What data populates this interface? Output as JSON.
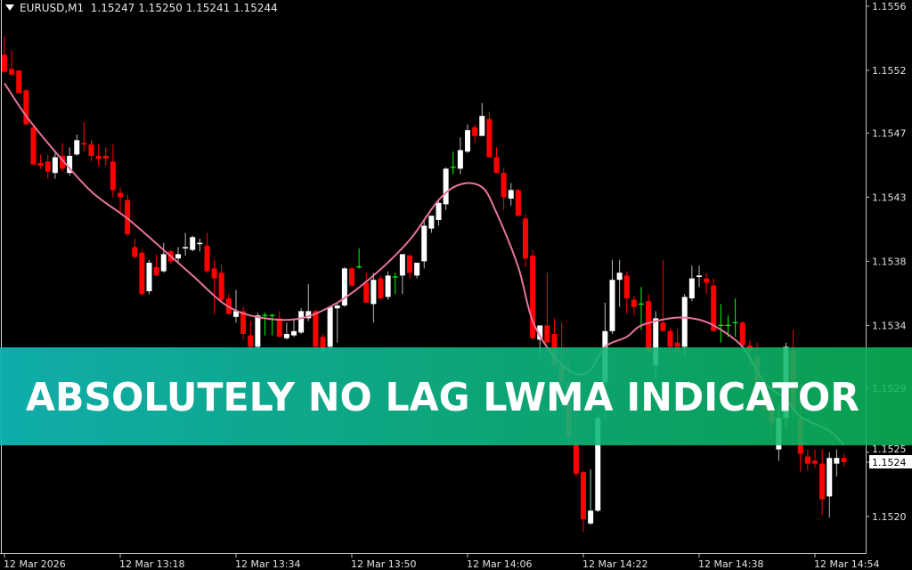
{
  "header": {
    "symbol_timeframe": "EURUSD,M1",
    "quote": "1.15247 1.15250 1.15241 1.15244",
    "menu_icon": "triangle-down-icon"
  },
  "banner": {
    "text": "ABSOLUTELY NO LAG LWMA INDICATOR",
    "gradient_left": "#11b5b4",
    "gradient_right": "#0bb85a"
  },
  "colors": {
    "background": "#000000",
    "bull": "#ffffff",
    "bear": "#ff0000",
    "doji": "#00ff00",
    "lwma": "#e8739c",
    "axis": "#c0c0c0"
  },
  "chart_data": {
    "type": "candlestick",
    "series_fields": [
      "time",
      "open",
      "high",
      "low",
      "close"
    ],
    "current_price_label": "1.1524",
    "y_ticks": [
      {
        "label": "1.1556",
        "value": 1.15564
      },
      {
        "label": "1.1552",
        "value": 1.15519
      },
      {
        "label": "1.1547",
        "value": 1.15475
      },
      {
        "label": "1.1543",
        "value": 1.1543
      },
      {
        "label": "1.1538",
        "value": 1.15385
      },
      {
        "label": "1.1534",
        "value": 1.1534
      },
      {
        "label": "1.1529",
        "value": 1.15296
      },
      {
        "label": "1.1525",
        "value": 1.15251
      },
      {
        "label": "1.1520",
        "value": 1.15206
      }
    ],
    "x_ticks": [
      {
        "label": "12 Mar 2026",
        "time": "13:02"
      },
      {
        "label": "12 Mar 13:18",
        "time": "13:18"
      },
      {
        "label": "12 Mar 13:34",
        "time": "13:34"
      },
      {
        "label": "12 Mar 13:50",
        "time": "13:50"
      },
      {
        "label": "12 Mar 14:06",
        "time": "14:06"
      },
      {
        "label": "12 Mar 14:22",
        "time": "14:22"
      },
      {
        "label": "12 Mar 14:38",
        "time": "14:38"
      },
      {
        "label": "12 Mar 14:54",
        "time": "14:54"
      }
    ],
    "candles": [
      [
        "13:02",
        1.1553,
        1.15543,
        1.15517,
        1.15518
      ],
      [
        "13:03",
        1.1552,
        1.15533,
        1.15515,
        1.15516
      ],
      [
        "13:04",
        1.15519,
        1.15519,
        1.15503,
        1.15503
      ],
      [
        "13:05",
        1.15505,
        1.15506,
        1.15481,
        1.15481
      ],
      [
        "13:06",
        1.15479,
        1.1548,
        1.15453,
        1.15453
      ],
      [
        "13:07",
        1.15454,
        1.1546,
        1.1545,
        1.15452
      ],
      [
        "13:08",
        1.15455,
        1.1546,
        1.15443,
        1.15448
      ],
      [
        "13:09",
        1.15447,
        1.15462,
        1.15443,
        1.15458
      ],
      [
        "13:10",
        1.15459,
        1.15468,
        1.15448,
        1.1545
      ],
      [
        "13:11",
        1.15447,
        1.15465,
        1.15445,
        1.15459
      ],
      [
        "13:12",
        1.1546,
        1.15474,
        1.15459,
        1.1547
      ],
      [
        "13:13",
        1.15468,
        1.15483,
        1.15462,
        1.15467
      ],
      [
        "13:14",
        1.15467,
        1.1547,
        1.15455,
        1.15459
      ],
      [
        "13:15",
        1.15459,
        1.15467,
        1.15452,
        1.15457
      ],
      [
        "13:16",
        1.15459,
        1.15465,
        1.15452,
        1.15457
      ],
      [
        "13:17",
        1.15455,
        1.15467,
        1.1543,
        1.15435
      ],
      [
        "13:18",
        1.15433,
        1.15437,
        1.15418,
        1.1543
      ],
      [
        "13:19",
        1.15428,
        1.15432,
        1.15403,
        1.15404
      ],
      [
        "13:20",
        1.15395,
        1.15401,
        1.15387,
        1.15388
      ],
      [
        "13:21",
        1.15391,
        1.15393,
        1.15361,
        1.15362
      ],
      [
        "13:22",
        1.15364,
        1.15386,
        1.15362,
        1.15384
      ],
      [
        "13:23",
        1.15381,
        1.1539,
        1.15375,
        1.15375
      ],
      [
        "13:24",
        1.15378,
        1.15398,
        1.15377,
        1.1539
      ],
      [
        "13:25",
        1.15392,
        1.15393,
        1.15383,
        1.15385
      ],
      [
        "13:26",
        1.15387,
        1.15395,
        1.15384,
        1.1539
      ],
      [
        "13:27",
        1.15394,
        1.15405,
        1.15389,
        1.15395
      ],
      [
        "13:28",
        1.15393,
        1.15403,
        1.15392,
        1.15402
      ],
      [
        "13:29",
        1.15397,
        1.15401,
        1.15392,
        1.15398
      ],
      [
        "13:30",
        1.15396,
        1.15405,
        1.15377,
        1.15378
      ],
      [
        "13:31",
        1.1538,
        1.15386,
        1.15348,
        1.15373
      ],
      [
        "13:32",
        1.15377,
        1.15383,
        1.15357,
        1.15358
      ],
      [
        "13:33",
        1.15359,
        1.15362,
        1.15348,
        1.15348
      ],
      [
        "13:34",
        1.15346,
        1.15365,
        1.15342,
        1.1535
      ],
      [
        "13:35",
        1.1535,
        1.15353,
        1.1533,
        1.15334
      ],
      [
        "13:36",
        1.15333,
        1.15343,
        1.15323,
        1.15325
      ],
      [
        "13:37",
        1.15325,
        1.15349,
        1.15323,
        1.15347
      ],
      [
        "13:38",
        1.15347,
        1.15349,
        1.15333,
        1.15347
      ],
      [
        "13:39",
        1.15347,
        1.15348,
        1.15333,
        1.15347
      ],
      [
        "13:40",
        1.15345,
        1.1535,
        1.15332,
        1.15332
      ],
      [
        "13:41",
        1.15331,
        1.15342,
        1.1533,
        1.15334
      ],
      [
        "13:42",
        1.15333,
        1.15344,
        1.15332,
        1.15336
      ],
      [
        "13:43",
        1.15335,
        1.15352,
        1.15334,
        1.1535
      ],
      [
        "13:44",
        1.15345,
        1.15369,
        1.15343,
        1.1535
      ],
      [
        "13:45",
        1.1535,
        1.15351,
        1.15323,
        1.15325
      ],
      [
        "13:46",
        1.15332,
        1.15334,
        1.15318,
        1.15322
      ],
      [
        "13:47",
        1.15325,
        1.15353,
        1.15322,
        1.15353
      ],
      [
        "13:48",
        1.15352,
        1.15356,
        1.15328,
        1.15354
      ],
      [
        "13:49",
        1.15354,
        1.15381,
        1.15353,
        1.1538
      ],
      [
        "13:50",
        1.1538,
        1.15381,
        1.15367,
        1.15368
      ],
      [
        "13:51",
        1.15381,
        1.15394,
        1.1538,
        1.15381
      ],
      [
        "13:52",
        1.1537,
        1.15377,
        1.15356,
        1.15356
      ],
      [
        "13:53",
        1.15355,
        1.15377,
        1.15342,
        1.15372
      ],
      [
        "13:54",
        1.15373,
        1.15375,
        1.15358,
        1.15359
      ],
      [
        "13:55",
        1.1536,
        1.15378,
        1.15358,
        1.15375
      ],
      [
        "13:56",
        1.15374,
        1.15377,
        1.15362,
        1.15374
      ],
      [
        "13:57",
        1.15375,
        1.1539,
        1.15362,
        1.1539
      ],
      [
        "13:58",
        1.15389,
        1.1539,
        1.15373,
        1.15377
      ],
      [
        "13:59",
        1.15375,
        1.15384,
        1.15373,
        1.15384
      ],
      [
        "14:00",
        1.15385,
        1.15415,
        1.1538,
        1.1541
      ],
      [
        "14:01",
        1.15408,
        1.15417,
        1.15405,
        1.15417
      ],
      [
        "14:02",
        1.15414,
        1.15428,
        1.1541,
        1.15426
      ],
      [
        "14:03",
        1.15425,
        1.15451,
        1.15421,
        1.1545
      ],
      [
        "14:04",
        1.15451,
        1.15462,
        1.15446,
        1.15451
      ],
      [
        "14:05",
        1.1545,
        1.15472,
        1.15446,
        1.15463
      ],
      [
        "14:06",
        1.15462,
        1.15481,
        1.15461,
        1.15477
      ],
      [
        "14:07",
        1.15479,
        1.15481,
        1.15468,
        1.15473
      ],
      [
        "14:08",
        1.15473,
        1.15496,
        1.15473,
        1.15487
      ],
      [
        "14:09",
        1.15485,
        1.1549,
        1.15458,
        1.15458
      ],
      [
        "14:10",
        1.15458,
        1.15465,
        1.15447,
        1.15447
      ],
      [
        "14:11",
        1.15447,
        1.1545,
        1.15421,
        1.1543
      ],
      [
        "14:12",
        1.15429,
        1.1544,
        1.15424,
        1.15435
      ],
      [
        "14:13",
        1.15435,
        1.15436,
        1.15416,
        1.15417
      ],
      [
        "14:14",
        1.15415,
        1.15418,
        1.15381,
        1.15387
      ],
      [
        "14:15",
        1.15389,
        1.15393,
        1.1533,
        1.15331
      ],
      [
        "14:16",
        1.1533,
        1.1534,
        1.1532,
        1.1534
      ],
      [
        "14:17",
        1.1534,
        1.15377,
        1.15328,
        1.15328
      ],
      [
        "14:18",
        1.15334,
        1.15345,
        1.15306,
        1.15312
      ],
      [
        "14:19",
        1.15312,
        1.15342,
        1.15293,
        1.153
      ],
      [
        "14:20",
        1.153,
        1.15318,
        1.15256,
        1.15262
      ],
      [
        "14:21",
        1.15256,
        1.15278,
        1.15234,
        1.15236
      ],
      [
        "14:22",
        1.15237,
        1.15238,
        1.15195,
        1.15204
      ],
      [
        "14:23",
        1.15201,
        1.15239,
        1.152,
        1.1521
      ],
      [
        "14:24",
        1.1521,
        1.15278,
        1.15209,
        1.15275
      ],
      [
        "14:25",
        1.153,
        1.15356,
        1.15275,
        1.15336
      ],
      [
        "14:26",
        1.15336,
        1.15386,
        1.15334,
        1.15372
      ],
      [
        "14:27",
        1.15372,
        1.15386,
        1.15353,
        1.15377
      ],
      [
        "14:28",
        1.15375,
        1.15378,
        1.15348,
        1.15359
      ],
      [
        "14:29",
        1.15358,
        1.15361,
        1.15347,
        1.15353
      ],
      [
        "14:30",
        1.15355,
        1.15367,
        1.15337,
        1.15355
      ],
      [
        "14:31",
        1.15357,
        1.15362,
        1.1532,
        1.15322
      ],
      [
        "14:32",
        1.15312,
        1.1535,
        1.15303,
        1.15345
      ],
      [
        "14:33",
        1.15342,
        1.15386,
        1.15336,
        1.15336
      ],
      [
        "14:34",
        1.15336,
        1.15338,
        1.15318,
        1.15325
      ],
      [
        "14:35",
        1.15328,
        1.15338,
        1.15318,
        1.15325
      ],
      [
        "14:36",
        1.15325,
        1.15362,
        1.15318,
        1.1536
      ],
      [
        "14:37",
        1.15359,
        1.15382,
        1.15357,
        1.15373
      ],
      [
        "14:38",
        1.15374,
        1.15382,
        1.15367,
        1.15375
      ],
      [
        "14:39",
        1.15373,
        1.15377,
        1.15362,
        1.1537
      ],
      [
        "14:40",
        1.15368,
        1.15373,
        1.15336,
        1.15336
      ],
      [
        "14:41",
        1.1534,
        1.15355,
        1.15328,
        1.1534
      ],
      [
        "14:42",
        1.1534,
        1.15347,
        1.15332,
        1.1534
      ],
      [
        "14:43",
        1.15342,
        1.15359,
        1.15332,
        1.15342
      ],
      [
        "14:44",
        1.15342,
        1.15343,
        1.15325,
        1.15326
      ],
      [
        "14:45",
        1.15326,
        1.1533,
        1.15306,
        1.15322
      ],
      [
        "14:46",
        1.15318,
        1.15328,
        1.15293,
        1.153
      ],
      [
        "14:47",
        1.153,
        1.15306,
        1.15275,
        1.15281
      ],
      [
        "14:48",
        1.15281,
        1.15293,
        1.15262,
        1.15272
      ],
      [
        "14:49",
        1.15253,
        1.15284,
        1.15245,
        1.15275
      ],
      [
        "14:50",
        1.15275,
        1.15328,
        1.15268,
        1.15325
      ],
      [
        "14:51",
        1.15322,
        1.15337,
        1.15275,
        1.15281
      ],
      [
        "14:52",
        1.15275,
        1.15287,
        1.15237,
        1.1525
      ],
      [
        "14:53",
        1.15248,
        1.15253,
        1.15238,
        1.15243
      ],
      [
        "14:54",
        1.15245,
        1.15253,
        1.1524,
        1.15243
      ],
      [
        "14:55",
        1.15243,
        1.15253,
        1.15207,
        1.15218
      ],
      [
        "14:56",
        1.1522,
        1.15251,
        1.15205,
        1.15247
      ],
      [
        "14:57",
        1.15243,
        1.15253,
        1.15234,
        1.15247
      ],
      [
        "14:58",
        1.15247,
        1.1525,
        1.15241,
        1.15244
      ]
    ],
    "lwma": [
      [
        "13:02",
        1.1551
      ],
      [
        "13:05",
        1.15487
      ],
      [
        "13:09",
        1.15462
      ],
      [
        "13:14",
        1.15434
      ],
      [
        "13:19",
        1.15415
      ],
      [
        "13:24",
        1.15393
      ],
      [
        "13:28",
        1.15375
      ],
      [
        "13:33",
        1.15353
      ],
      [
        "13:38",
        1.15345
      ],
      [
        "13:43",
        1.15345
      ],
      [
        "13:48",
        1.15356
      ],
      [
        "13:53",
        1.15375
      ],
      [
        "13:58",
        1.154
      ],
      [
        "14:02",
        1.15428
      ],
      [
        "14:05",
        1.15439
      ],
      [
        "14:08",
        1.15437
      ],
      [
        "14:10",
        1.15419
      ],
      [
        "14:13",
        1.15381
      ],
      [
        "14:15",
        1.15343
      ],
      [
        "14:18",
        1.15318
      ],
      [
        "14:21",
        1.15306
      ],
      [
        "14:23",
        1.15309
      ],
      [
        "14:25",
        1.15325
      ],
      [
        "14:28",
        1.15332
      ],
      [
        "14:30",
        1.1534
      ],
      [
        "14:34",
        1.15345
      ],
      [
        "14:37",
        1.15345
      ],
      [
        "14:40",
        1.1534
      ],
      [
        "14:44",
        1.15325
      ],
      [
        "14:47",
        1.153
      ],
      [
        "14:50",
        1.15288
      ],
      [
        "14:52",
        1.15276
      ],
      [
        "14:56",
        1.15266
      ],
      [
        "14:58",
        1.15256
      ]
    ]
  }
}
